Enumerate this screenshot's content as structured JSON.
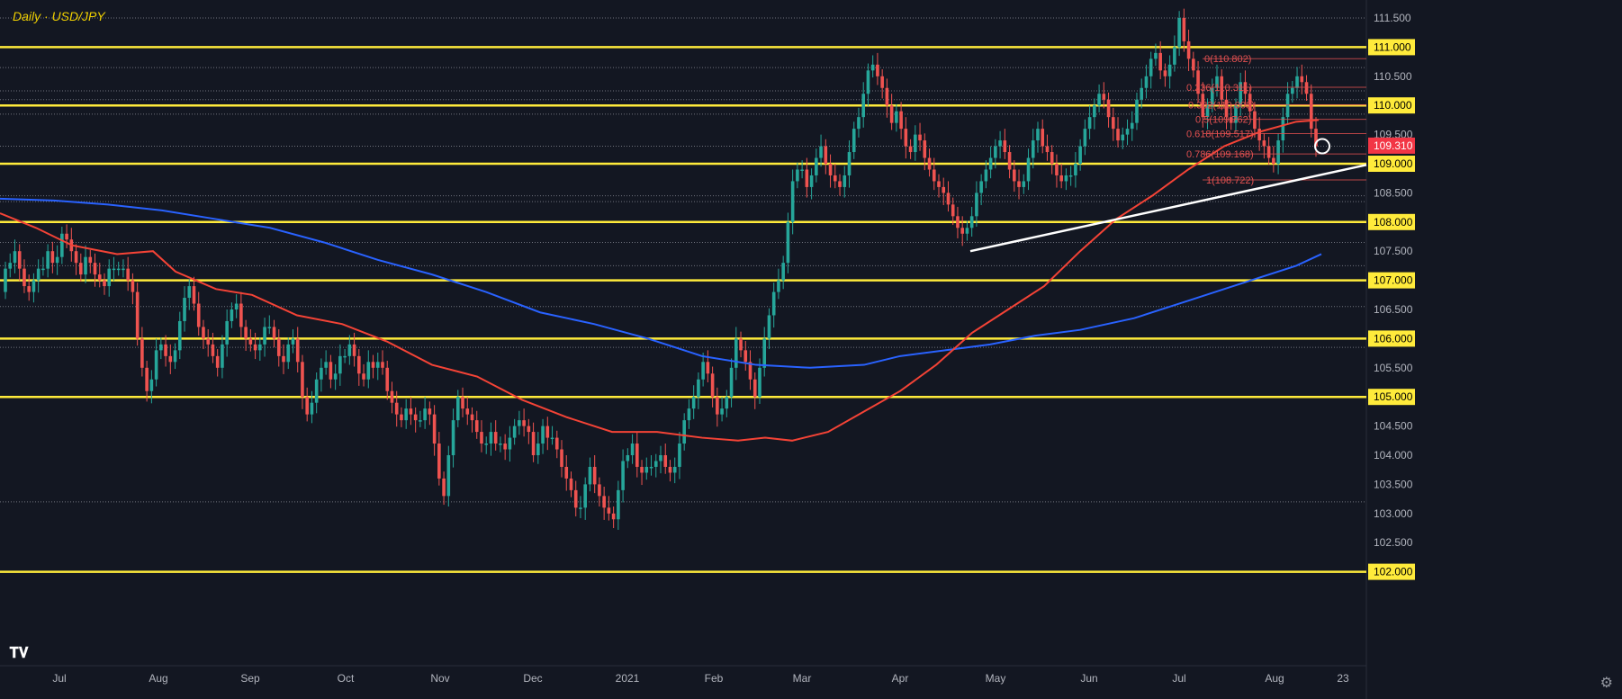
{
  "title": "Daily · USD/JPY",
  "settings_icon": "gear-icon",
  "logo_icon": "tradingview-logo-icon",
  "colors": {
    "background": "#131722",
    "grid": "#3a3f4b",
    "bull": "#26a69a",
    "bear": "#ef5350",
    "hline": "#ffeb3b",
    "ma100": "#f44336",
    "ma200": "#2962ff",
    "trend": "#ffffff",
    "fib": "#e05050",
    "axis_text": "#b2b5be",
    "price_tag": "#f23645"
  },
  "chart_data": {
    "type": "candlestick",
    "symbol": "USD/JPY",
    "timeframe": "Daily",
    "ylim": [
      101.9,
      111.75
    ],
    "x_ticks": [
      "Jul",
      "Aug",
      "Sep",
      "Oct",
      "Nov",
      "Dec",
      "2021",
      "Feb",
      "Mar",
      "Apr",
      "May",
      "Jun",
      "Jul",
      "Aug",
      "23"
    ],
    "y_ticks": [
      "111.500",
      "111.000",
      "110.500",
      "110.000",
      "109.500",
      "109.000",
      "108.500",
      "108.000",
      "107.500",
      "107.000",
      "106.500",
      "106.000",
      "105.500",
      "105.000",
      "104.500",
      "104.000",
      "103.500",
      "103.000",
      "102.500",
      "102.000"
    ],
    "last_price": "109.310",
    "horizontal_levels": [
      111.0,
      110.0,
      109.0,
      108.0,
      107.0,
      106.0,
      105.0,
      102.0
    ],
    "dotted_levels": [
      111.5,
      110.65,
      110.25,
      110.1,
      109.85,
      109.3,
      108.45,
      108.35,
      107.65,
      107.25,
      106.55,
      105.85,
      103.2
    ],
    "fib_labels": [
      "0(110.802)",
      "0.236(110.311)",
      "0.382(110.008)",
      "0.5(109.762)",
      "0.618(109.517)",
      "0.786(109.168)",
      "1(108.722)"
    ],
    "candles": [
      [
        106.8,
        107.2
      ],
      [
        107.2,
        107.3
      ],
      [
        107.3,
        107.5
      ],
      [
        107.5,
        107.2
      ],
      [
        107.2,
        106.9
      ],
      [
        106.9,
        106.8
      ],
      [
        106.8,
        107.0
      ],
      [
        107.0,
        107.2
      ],
      [
        107.2,
        107.2
      ],
      [
        107.2,
        107.5
      ],
      [
        107.5,
        107.3
      ],
      [
        107.3,
        107.4
      ],
      [
        107.4,
        107.8
      ],
      [
        107.8,
        107.7
      ],
      [
        107.7,
        107.5
      ],
      [
        107.5,
        107.3
      ],
      [
        107.3,
        107.1
      ],
      [
        107.1,
        107.4
      ],
      [
        107.4,
        107.3
      ],
      [
        107.3,
        107.1
      ],
      [
        107.1,
        107.0
      ],
      [
        107.0,
        106.9
      ],
      [
        106.9,
        107.2
      ],
      [
        107.2,
        107.2
      ],
      [
        107.2,
        107.2
      ],
      [
        107.2,
        107.2
      ],
      [
        107.2,
        107.0
      ],
      [
        107.0,
        106.8
      ],
      [
        106.8,
        106.0
      ],
      [
        106.0,
        105.5
      ],
      [
        105.5,
        105.1
      ],
      [
        105.1,
        105.3
      ],
      [
        105.3,
        105.8
      ],
      [
        105.8,
        105.9
      ],
      [
        105.9,
        105.7
      ],
      [
        105.7,
        105.6
      ],
      [
        105.6,
        105.8
      ],
      [
        105.8,
        106.3
      ],
      [
        106.3,
        106.7
      ],
      [
        106.7,
        106.9
      ],
      [
        106.9,
        106.6
      ],
      [
        106.6,
        106.2
      ],
      [
        106.2,
        106.0
      ],
      [
        106.0,
        105.9
      ],
      [
        105.9,
        105.7
      ],
      [
        105.7,
        105.5
      ],
      [
        105.5,
        105.9
      ],
      [
        105.9,
        106.3
      ],
      [
        106.3,
        106.5
      ],
      [
        106.5,
        106.6
      ],
      [
        106.6,
        106.2
      ],
      [
        106.2,
        106.0
      ],
      [
        106.0,
        105.9
      ],
      [
        105.9,
        105.8
      ],
      [
        105.8,
        105.9
      ],
      [
        105.9,
        106.2
      ],
      [
        106.2,
        106.2
      ],
      [
        106.2,
        106.0
      ],
      [
        106.0,
        105.7
      ],
      [
        105.7,
        105.6
      ],
      [
        105.6,
        105.9
      ],
      [
        105.9,
        106.0
      ],
      [
        106.0,
        105.6
      ],
      [
        105.6,
        105.0
      ],
      [
        105.0,
        104.7
      ],
      [
        104.7,
        104.9
      ],
      [
        104.9,
        105.3
      ],
      [
        105.3,
        105.5
      ],
      [
        105.5,
        105.6
      ],
      [
        105.6,
        105.3
      ],
      [
        105.3,
        105.4
      ],
      [
        105.4,
        105.7
      ],
      [
        105.7,
        105.7
      ],
      [
        105.7,
        105.9
      ],
      [
        105.9,
        105.7
      ],
      [
        105.7,
        105.4
      ],
      [
        105.4,
        105.3
      ],
      [
        105.3,
        105.6
      ],
      [
        105.6,
        105.5
      ],
      [
        105.5,
        105.6
      ],
      [
        105.6,
        105.5
      ],
      [
        105.5,
        105.1
      ],
      [
        105.1,
        104.9
      ],
      [
        104.9,
        104.7
      ],
      [
        104.7,
        104.6
      ],
      [
        104.6,
        104.8
      ],
      [
        104.8,
        104.7
      ],
      [
        104.7,
        104.6
      ],
      [
        104.6,
        104.6
      ],
      [
        104.6,
        104.8
      ],
      [
        104.8,
        104.7
      ],
      [
        104.7,
        104.2
      ],
      [
        104.2,
        103.6
      ],
      [
        103.6,
        103.3
      ],
      [
        103.3,
        104.0
      ],
      [
        104.0,
        104.6
      ],
      [
        104.6,
        105.0
      ],
      [
        105.0,
        104.8
      ],
      [
        104.8,
        104.7
      ],
      [
        104.7,
        104.6
      ],
      [
        104.6,
        104.4
      ],
      [
        104.4,
        104.2
      ],
      [
        104.2,
        104.2
      ],
      [
        104.2,
        104.4
      ],
      [
        104.4,
        104.2
      ],
      [
        104.2,
        104.2
      ],
      [
        104.2,
        104.1
      ],
      [
        104.1,
        104.3
      ],
      [
        104.3,
        104.5
      ],
      [
        104.5,
        104.6
      ],
      [
        104.6,
        104.5
      ],
      [
        104.5,
        104.4
      ],
      [
        104.4,
        104.0
      ],
      [
        104.0,
        104.2
      ],
      [
        104.2,
        104.5
      ],
      [
        104.5,
        104.3
      ],
      [
        104.3,
        104.3
      ],
      [
        104.3,
        104.1
      ],
      [
        104.1,
        103.8
      ],
      [
        103.8,
        103.6
      ],
      [
        103.6,
        103.4
      ],
      [
        103.4,
        103.1
      ],
      [
        103.1,
        103.1
      ],
      [
        103.1,
        103.5
      ],
      [
        103.5,
        103.8
      ],
      [
        103.8,
        103.5
      ],
      [
        103.5,
        103.3
      ],
      [
        103.3,
        103.1
      ],
      [
        103.1,
        103.0
      ],
      [
        103.0,
        102.9
      ],
      [
        102.9,
        103.4
      ],
      [
        103.4,
        103.9
      ],
      [
        103.9,
        104.0
      ],
      [
        104.0,
        104.2
      ],
      [
        104.2,
        103.8
      ],
      [
        103.8,
        103.7
      ],
      [
        103.7,
        103.8
      ],
      [
        103.8,
        103.8
      ],
      [
        103.8,
        103.9
      ],
      [
        103.9,
        104.0
      ],
      [
        104.0,
        103.8
      ],
      [
        103.8,
        103.7
      ],
      [
        103.7,
        103.8
      ],
      [
        103.8,
        104.2
      ],
      [
        104.2,
        104.6
      ],
      [
        104.6,
        104.8
      ],
      [
        104.8,
        105.0
      ],
      [
        105.0,
        105.3
      ],
      [
        105.3,
        105.6
      ],
      [
        105.6,
        105.4
      ],
      [
        105.4,
        105.0
      ],
      [
        105.0,
        104.7
      ],
      [
        104.7,
        104.8
      ],
      [
        104.8,
        105.0
      ],
      [
        105.0,
        105.5
      ],
      [
        105.5,
        106.0
      ],
      [
        106.0,
        105.8
      ],
      [
        105.8,
        105.6
      ],
      [
        105.6,
        105.3
      ],
      [
        105.3,
        105.0
      ],
      [
        105.0,
        105.5
      ],
      [
        105.5,
        106.0
      ],
      [
        106.0,
        106.4
      ],
      [
        106.4,
        106.8
      ],
      [
        106.8,
        107.0
      ],
      [
        107.0,
        107.3
      ],
      [
        107.3,
        108.0
      ],
      [
        108.0,
        108.7
      ],
      [
        108.7,
        108.9
      ],
      [
        108.9,
        108.9
      ],
      [
        108.9,
        108.6
      ],
      [
        108.6,
        108.8
      ],
      [
        108.8,
        109.1
      ],
      [
        109.1,
        109.3
      ],
      [
        109.3,
        109.0
      ],
      [
        109.0,
        108.8
      ],
      [
        108.8,
        108.7
      ],
      [
        108.7,
        108.6
      ],
      [
        108.6,
        108.8
      ],
      [
        108.8,
        109.2
      ],
      [
        109.2,
        109.6
      ],
      [
        109.6,
        109.8
      ],
      [
        109.8,
        110.2
      ],
      [
        110.2,
        110.6
      ],
      [
        110.6,
        110.7
      ],
      [
        110.7,
        110.5
      ],
      [
        110.5,
        110.3
      ],
      [
        110.3,
        110.0
      ],
      [
        110.0,
        109.7
      ],
      [
        109.7,
        109.9
      ],
      [
        109.9,
        109.6
      ],
      [
        109.6,
        109.3
      ],
      [
        109.3,
        109.2
      ],
      [
        109.2,
        109.5
      ],
      [
        109.5,
        109.4
      ],
      [
        109.4,
        109.1
      ],
      [
        109.1,
        108.9
      ],
      [
        108.9,
        108.7
      ],
      [
        108.7,
        108.6
      ],
      [
        108.6,
        108.5
      ],
      [
        108.5,
        108.3
      ],
      [
        108.3,
        108.1
      ],
      [
        108.1,
        107.9
      ],
      [
        107.9,
        107.8
      ],
      [
        107.8,
        107.9
      ],
      [
        107.9,
        108.1
      ],
      [
        108.1,
        108.5
      ],
      [
        108.5,
        108.7
      ],
      [
        108.7,
        108.9
      ],
      [
        108.9,
        109.1
      ],
      [
        109.1,
        109.3
      ],
      [
        109.3,
        109.4
      ],
      [
        109.4,
        109.2
      ],
      [
        109.2,
        108.9
      ],
      [
        108.9,
        108.7
      ],
      [
        108.7,
        108.6
      ],
      [
        108.6,
        108.7
      ],
      [
        108.7,
        109.1
      ],
      [
        109.1,
        109.4
      ],
      [
        109.4,
        109.6
      ],
      [
        109.6,
        109.3
      ],
      [
        109.3,
        109.2
      ],
      [
        109.2,
        109.0
      ],
      [
        109.0,
        108.8
      ],
      [
        108.8,
        108.7
      ],
      [
        108.7,
        108.8
      ],
      [
        108.8,
        108.8
      ],
      [
        108.8,
        109.0
      ],
      [
        109.0,
        109.3
      ],
      [
        109.3,
        109.6
      ],
      [
        109.6,
        109.8
      ],
      [
        109.8,
        110.0
      ],
      [
        110.0,
        110.2
      ],
      [
        110.2,
        110.1
      ],
      [
        110.1,
        109.8
      ],
      [
        109.8,
        109.6
      ],
      [
        109.6,
        109.4
      ],
      [
        109.4,
        109.5
      ],
      [
        109.5,
        109.6
      ],
      [
        109.6,
        109.7
      ],
      [
        109.7,
        110.1
      ],
      [
        110.1,
        110.3
      ],
      [
        110.3,
        110.5
      ],
      [
        110.5,
        110.8
      ],
      [
        110.8,
        110.9
      ],
      [
        110.9,
        110.6
      ],
      [
        110.6,
        110.5
      ],
      [
        110.5,
        110.7
      ],
      [
        110.7,
        111.0
      ],
      [
        111.0,
        111.5
      ],
      [
        111.5,
        111.1
      ],
      [
        111.1,
        110.8
      ],
      [
        110.8,
        110.6
      ],
      [
        110.6,
        110.2
      ],
      [
        110.2,
        109.8
      ],
      [
        109.8,
        110.0
      ],
      [
        110.0,
        110.3
      ],
      [
        110.3,
        110.5
      ],
      [
        110.5,
        110.1
      ],
      [
        110.1,
        109.8
      ],
      [
        109.8,
        109.7
      ],
      [
        109.7,
        110.0
      ],
      [
        110.0,
        110.4
      ],
      [
        110.4,
        110.2
      ],
      [
        110.2,
        109.9
      ],
      [
        109.9,
        109.6
      ],
      [
        109.6,
        109.4
      ],
      [
        109.4,
        109.3
      ],
      [
        109.3,
        109.1
      ],
      [
        109.1,
        109.0
      ],
      [
        109.0,
        109.4
      ],
      [
        109.4,
        109.8
      ],
      [
        109.8,
        110.2
      ],
      [
        110.2,
        110.3
      ],
      [
        110.3,
        110.5
      ],
      [
        110.5,
        110.4
      ],
      [
        110.4,
        110.2
      ],
      [
        110.2,
        109.6
      ],
      [
        109.6,
        109.3
      ]
    ],
    "ma_100": [
      [
        0,
        108.15
      ],
      [
        40,
        107.9
      ],
      [
        80,
        107.6
      ],
      [
        130,
        107.45
      ],
      [
        170,
        107.5
      ],
      [
        195,
        107.15
      ],
      [
        240,
        106.85
      ],
      [
        280,
        106.75
      ],
      [
        330,
        106.4
      ],
      [
        380,
        106.25
      ],
      [
        430,
        105.95
      ],
      [
        480,
        105.55
      ],
      [
        530,
        105.35
      ],
      [
        580,
        104.95
      ],
      [
        630,
        104.65
      ],
      [
        680,
        104.4
      ],
      [
        730,
        104.4
      ],
      [
        780,
        104.3
      ],
      [
        820,
        104.25
      ],
      [
        850,
        104.3
      ],
      [
        880,
        104.25
      ],
      [
        920,
        104.4
      ],
      [
        960,
        104.75
      ],
      [
        1000,
        105.1
      ],
      [
        1040,
        105.55
      ],
      [
        1080,
        106.1
      ],
      [
        1120,
        106.5
      ],
      [
        1160,
        106.9
      ],
      [
        1200,
        107.5
      ],
      [
        1240,
        108.05
      ],
      [
        1280,
        108.45
      ],
      [
        1320,
        108.9
      ],
      [
        1360,
        109.3
      ],
      [
        1400,
        109.55
      ],
      [
        1440,
        109.72
      ],
      [
        1465,
        109.75
      ]
    ],
    "ma_200": [
      [
        0,
        108.4
      ],
      [
        60,
        108.37
      ],
      [
        120,
        108.3
      ],
      [
        180,
        108.2
      ],
      [
        240,
        108.05
      ],
      [
        300,
        107.9
      ],
      [
        360,
        107.65
      ],
      [
        420,
        107.35
      ],
      [
        480,
        107.1
      ],
      [
        540,
        106.8
      ],
      [
        600,
        106.45
      ],
      [
        660,
        106.25
      ],
      [
        720,
        106.0
      ],
      [
        780,
        105.7
      ],
      [
        840,
        105.55
      ],
      [
        900,
        105.5
      ],
      [
        960,
        105.55
      ],
      [
        1000,
        105.7
      ],
      [
        1050,
        105.8
      ],
      [
        1100,
        105.9
      ],
      [
        1150,
        106.05
      ],
      [
        1200,
        106.15
      ],
      [
        1260,
        106.35
      ],
      [
        1320,
        106.65
      ],
      [
        1380,
        106.95
      ],
      [
        1440,
        107.25
      ],
      [
        1468,
        107.45
      ]
    ],
    "trendline": [
      [
        1078,
        107.5
      ],
      [
        1518,
        108.98
      ]
    ],
    "fib_levels": [
      110.802,
      110.311,
      110.008,
      109.762,
      109.517,
      109.168,
      108.722
    ]
  }
}
